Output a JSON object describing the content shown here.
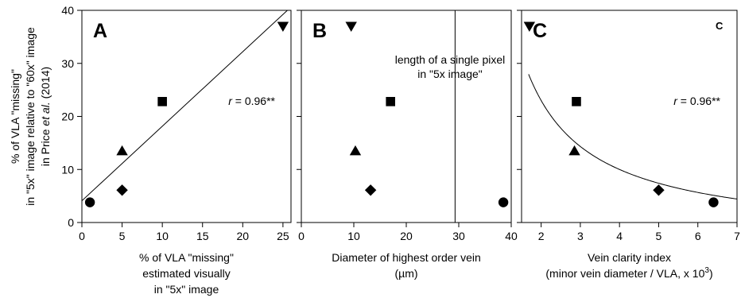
{
  "figure": {
    "shared_ylabel_lines": [
      "% of VLA \"missing\"",
      "in \"5x\" image relative to \"60x\" image",
      "in Price et al. (2014)"
    ]
  },
  "chart_data": [
    {
      "type": "scatter",
      "panel_letter": "A",
      "xlabel_lines": [
        "% of VLA \"missing\"",
        "estimated visually",
        "in \"5x\" image"
      ],
      "xlim": [
        0,
        26
      ],
      "ylim": [
        0,
        40
      ],
      "xticks": [
        0,
        5,
        10,
        15,
        20,
        25
      ],
      "yticks": [
        0,
        10,
        20,
        30,
        40
      ],
      "grid": false,
      "points": [
        {
          "marker": "circle",
          "x": 1,
          "y": 3.8
        },
        {
          "marker": "diamond",
          "x": 5,
          "y": 6.1
        },
        {
          "marker": "triangle-up",
          "x": 5,
          "y": 13.5
        },
        {
          "marker": "square",
          "x": 10,
          "y": 22.8
        },
        {
          "marker": "triangle-down",
          "x": 25,
          "y": 37
        }
      ],
      "fit": {
        "type": "linear",
        "intercept": 4.1,
        "slope": 1.405
      },
      "annotation": {
        "prefix": "r",
        "text": " = 0.96**"
      }
    },
    {
      "type": "scatter",
      "panel_letter": "B",
      "xlabel_lines": [
        "Diameter of highest order vein",
        "(µm)"
      ],
      "xlim": [
        0,
        40
      ],
      "ylim": [
        0,
        40
      ],
      "xticks": [
        0,
        10,
        20,
        30,
        40
      ],
      "yticks": [
        0,
        10,
        20,
        30,
        40
      ],
      "grid": false,
      "points": [
        {
          "marker": "triangle-down",
          "x": 9.5,
          "y": 37
        },
        {
          "marker": "square",
          "x": 17,
          "y": 22.8
        },
        {
          "marker": "triangle-up",
          "x": 10.3,
          "y": 13.5
        },
        {
          "marker": "diamond",
          "x": 13.2,
          "y": 6.1
        },
        {
          "marker": "circle",
          "x": 38.5,
          "y": 3.8
        }
      ],
      "reference_line": {
        "x": 29.3
      },
      "annotation_lines": [
        "length of a single pixel",
        "in \"5x image\""
      ]
    },
    {
      "type": "scatter",
      "panel_letter": "C",
      "small_letter": "C",
      "xlabel_lines": [
        "Vein clarity index",
        "(minor vein diameter / VLA, x 10",
        "3",
        ")"
      ],
      "xlim": [
        1.5,
        7
      ],
      "ylim": [
        0,
        40
      ],
      "xticks": [
        2,
        3,
        4,
        5,
        6,
        7
      ],
      "yticks": [
        0,
        10,
        20,
        30,
        40
      ],
      "grid": false,
      "points": [
        {
          "marker": "triangle-down",
          "x": 1.7,
          "y": 37
        },
        {
          "marker": "square",
          "x": 2.9,
          "y": 22.8
        },
        {
          "marker": "triangle-up",
          "x": 2.85,
          "y": 13.5
        },
        {
          "marker": "diamond",
          "x": 5,
          "y": 6.1
        },
        {
          "marker": "circle",
          "x": 6.4,
          "y": 3.8
        }
      ],
      "fit": {
        "type": "reciprocal",
        "a": 52,
        "b": -3,
        "x_start": 1.68
      },
      "annotation": {
        "prefix": "r",
        "text": " = 0.96**"
      }
    }
  ]
}
